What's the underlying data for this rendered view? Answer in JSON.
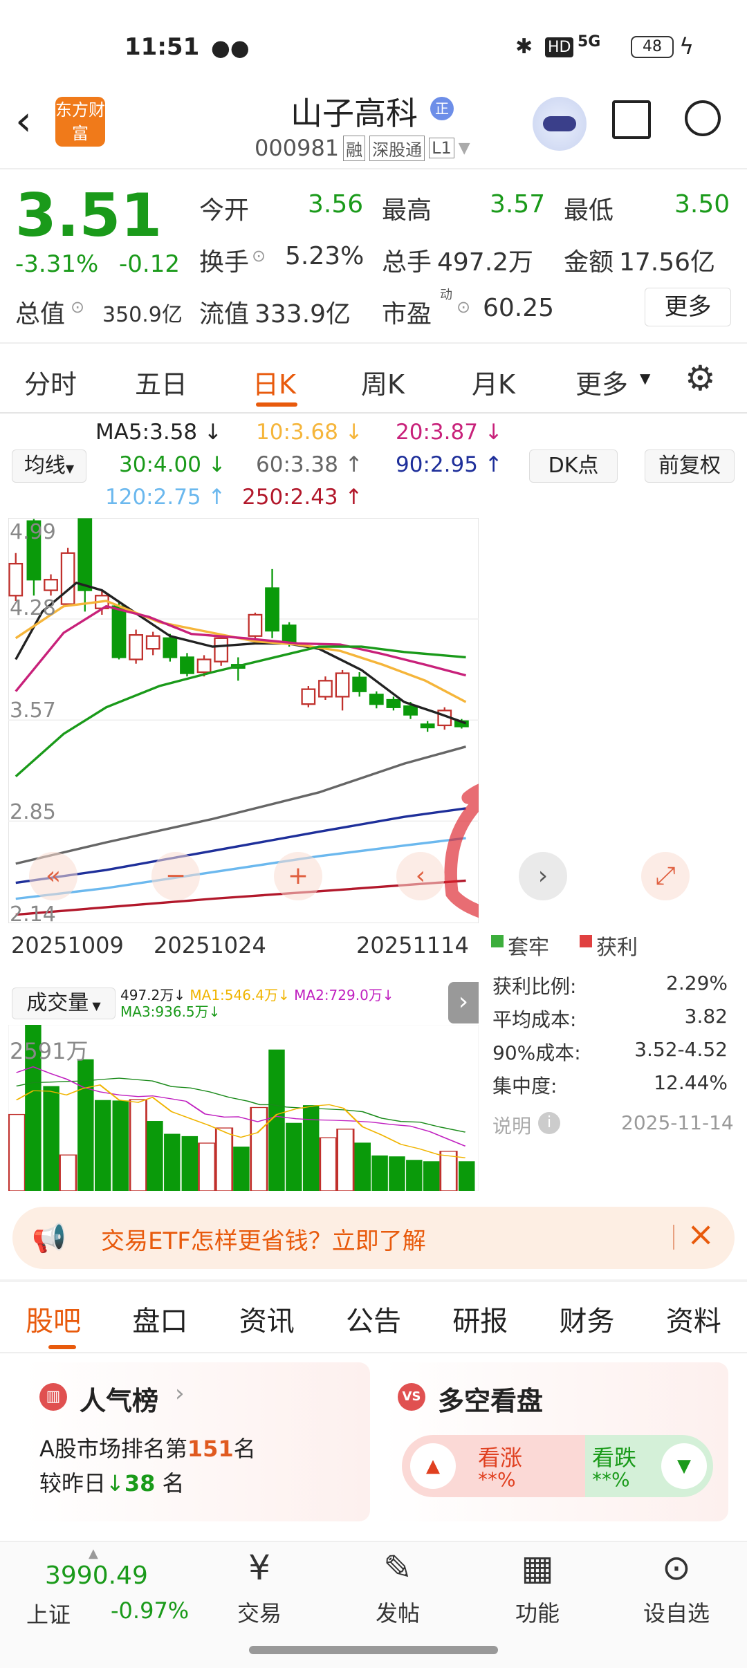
{
  "status": {
    "time": "11:51",
    "battery": "48",
    "signal": "5G",
    "hd": "HD"
  },
  "header": {
    "logo": "东方财富",
    "title": "山子高科",
    "title_badge": "正",
    "code": "000981",
    "badges": [
      "融",
      "深股通",
      "L1"
    ]
  },
  "quote": {
    "price": "3.51",
    "change_pct": "-3.31%",
    "change": "-0.12",
    "rows": [
      [
        {
          "label": "今开",
          "value": "3.56"
        },
        {
          "label": "最高",
          "value": "3.57"
        },
        {
          "label": "最低",
          "value": "3.50"
        }
      ],
      [
        {
          "label": "换手",
          "value": "5.23%"
        },
        {
          "label": "总手",
          "value": "497.2万"
        },
        {
          "label": "金额",
          "value": "17.56亿"
        }
      ]
    ],
    "total_value_label": "总值",
    "total_value": "350.9亿",
    "float_label": "流值",
    "float_value": "333.9亿",
    "pe_label": "市盈",
    "pe_sup": "动",
    "pe_value": "60.25",
    "more": "更多"
  },
  "tabs": [
    "分时",
    "五日",
    "日K",
    "周K",
    "月K",
    "更多"
  ],
  "ma_legend": {
    "selector": "均线",
    "dk": "DK点",
    "adjust": "前复权",
    "items": [
      {
        "text": "MA5:3.58",
        "arrow": "↓",
        "color": "#222222"
      },
      {
        "text": "10:3.68",
        "arrow": "↓",
        "color": "#f5b53a"
      },
      {
        "text": "20:3.87",
        "arrow": "↓",
        "color": "#c8217a"
      },
      {
        "text": "30:4.00",
        "arrow": "↓",
        "color": "#1a9a1a"
      },
      {
        "text": "60:3.38",
        "arrow": "↑",
        "color": "#666666"
      },
      {
        "text": "90:2.95",
        "arrow": "↑",
        "color": "#1e2f9a"
      },
      {
        "text": "120:2.75",
        "arrow": "↑",
        "color": "#6bb8ee"
      },
      {
        "text": "250:2.43",
        "arrow": "↑",
        "color": "#b2182b"
      }
    ]
  },
  "kchart": {
    "price_labels": [
      "4.99",
      "4.28",
      "3.57",
      "2.85",
      "2.14"
    ],
    "dates": [
      "20251009",
      "20251024",
      "20251114"
    ]
  },
  "chips": {
    "legend_trapped": "套牢",
    "legend_profit": "获利",
    "stats": [
      {
        "label": "获利比例:",
        "value": "2.29%"
      },
      {
        "label": "平均成本:",
        "value": "3.82"
      },
      {
        "label": "90%成本:",
        "value": "3.52-4.52"
      },
      {
        "label": "集中度:",
        "value": "12.44%"
      }
    ],
    "note": "说明",
    "date": "2025-11-14"
  },
  "volume": {
    "selector": "成交量",
    "vol": "497.2万↓",
    "ma1": "MA1:546.4万↓",
    "ma2": "MA2:729.0万↓",
    "ma3": "MA3:936.5万↓",
    "max_label": "2591万"
  },
  "banner": {
    "text": "交易ETF怎样更省钱？立即了解"
  },
  "section_tabs": [
    "股吧",
    "盘口",
    "资讯",
    "公告",
    "研报",
    "财务",
    "资料"
  ],
  "popularity": {
    "title": "人气榜",
    "rank_prefix": "A股市场排名第",
    "rank": "151",
    "rank_suffix": "名",
    "change_prefix": "较昨日",
    "change": "38",
    "change_suffix": "名"
  },
  "sentiment": {
    "title": "多空看盘",
    "bull": "看涨",
    "bull_pct": "**%",
    "bear": "看跌",
    "bear_pct": "**%"
  },
  "bottom_nav": {
    "index_value": "3990.49",
    "index_name": "上证",
    "index_change": "-0.97%",
    "items": [
      "交易",
      "发帖",
      "功能",
      "设自选"
    ]
  },
  "colors": {
    "up": "#d0021b",
    "down": "#1a9a1a",
    "accent": "#e85a0c"
  }
}
